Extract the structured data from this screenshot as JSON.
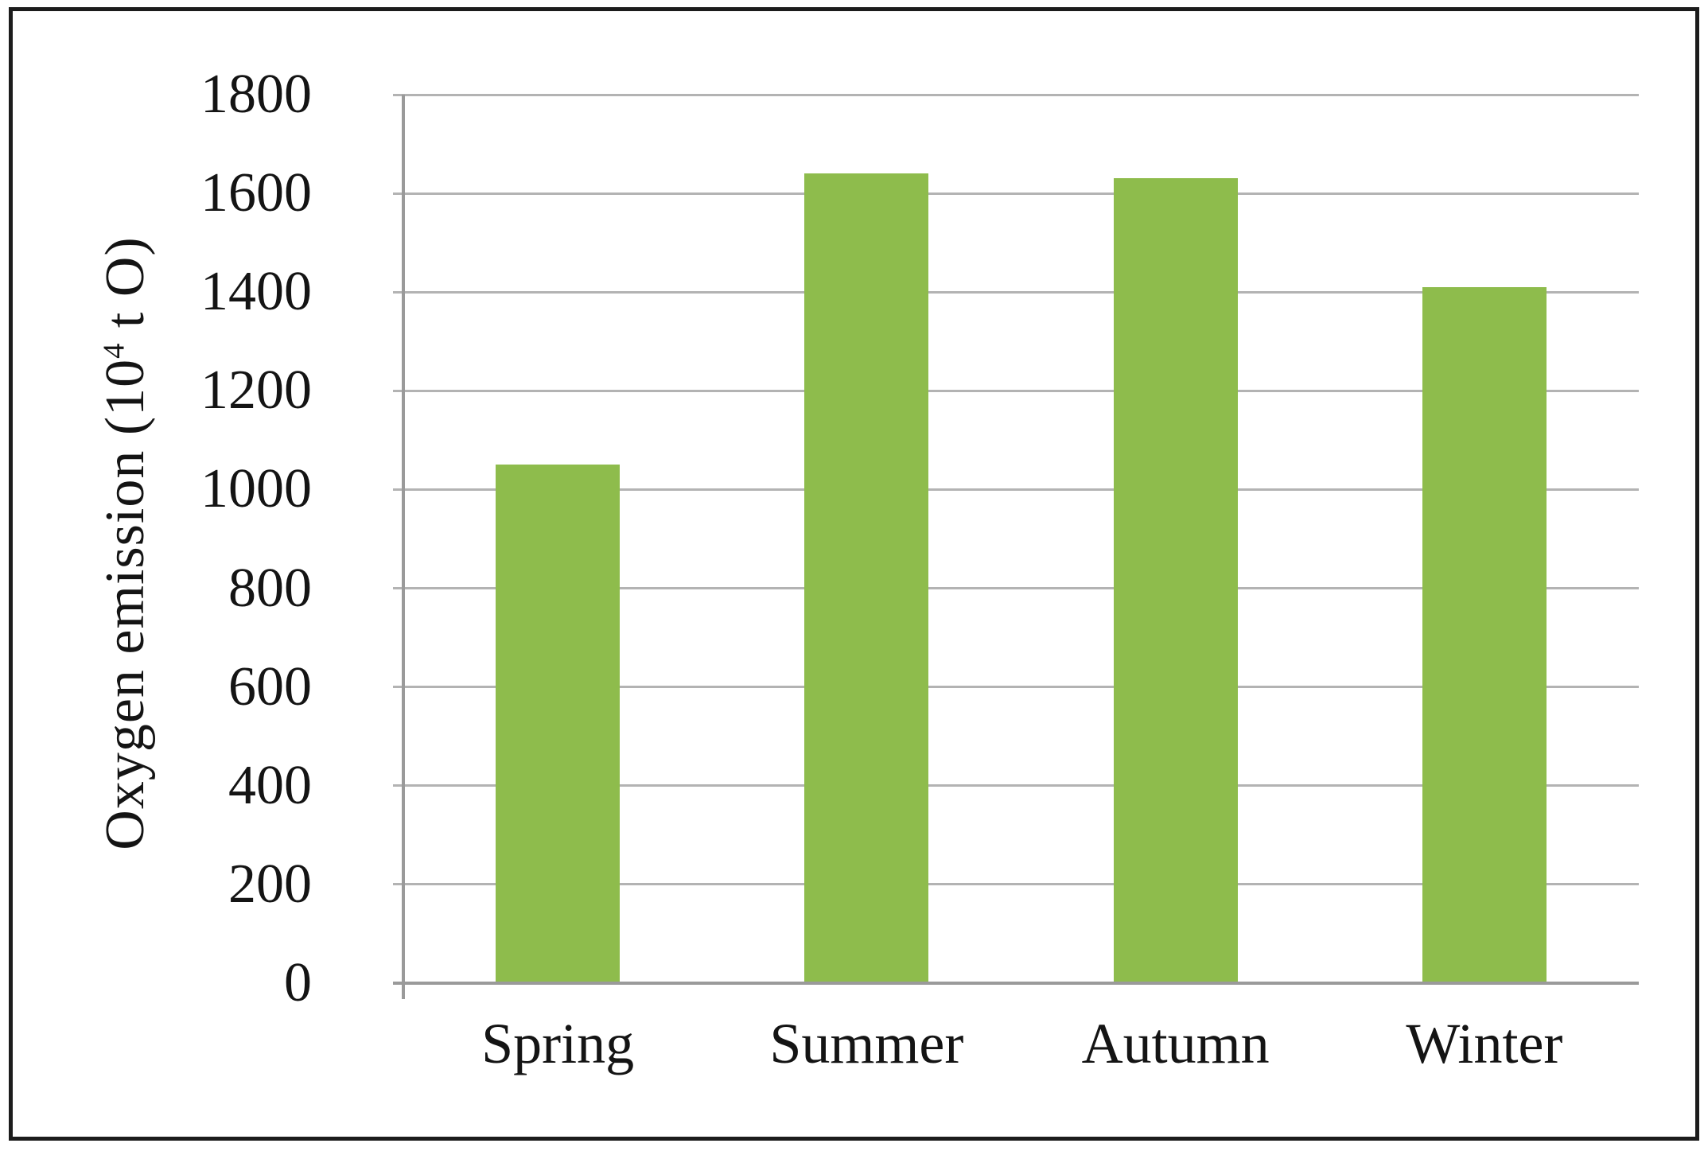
{
  "figure": {
    "background": "#ffffff",
    "border_color": "#1c1c1c"
  },
  "chart_data": {
    "type": "bar",
    "title": "",
    "categories": [
      "Spring",
      "Summer",
      "Autumn",
      "Winter"
    ],
    "values": [
      1050,
      1640,
      1630,
      1410
    ],
    "xlabel": "",
    "ylabel": "Oxygen emission (10⁴ t O)",
    "ylim": [
      0,
      1800
    ],
    "ytick_step": 200,
    "ytick_labels": [
      "1800",
      "1600",
      "1400",
      "1200",
      "1000",
      "800",
      "600",
      "400",
      "200",
      "0"
    ],
    "grid": "horizontal",
    "legend": "none",
    "bar_color": "#8EBC4C",
    "gridline_color": "#b3b3b3",
    "axis_color": "#9a9a9a",
    "text_color": "#141414"
  },
  "y_axis_title": {
    "prefix": "Oxygen emission (10",
    "superscript": "4",
    "suffix": " t O)"
  }
}
